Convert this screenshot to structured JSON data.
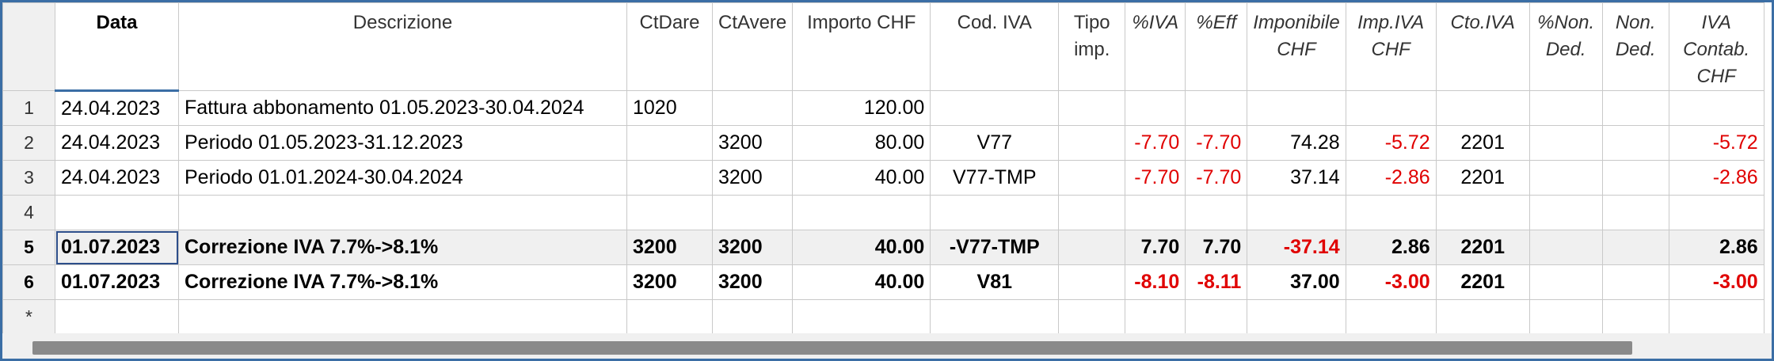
{
  "columns": [
    {
      "key": "rownum",
      "label": "",
      "italic": false
    },
    {
      "key": "data",
      "label": "Data",
      "italic": false
    },
    {
      "key": "descrizione",
      "label": "Descrizione",
      "italic": false
    },
    {
      "key": "ctdare",
      "label": "CtDare",
      "italic": false
    },
    {
      "key": "ctavere",
      "label": "CtAvere",
      "italic": false
    },
    {
      "key": "importo",
      "label": "Importo CHF",
      "italic": false
    },
    {
      "key": "codiva",
      "label": "Cod. IVA",
      "italic": false
    },
    {
      "key": "tipoimp",
      "label": "Tipo imp.",
      "italic": false
    },
    {
      "key": "piva",
      "label": "%IVA",
      "italic": true
    },
    {
      "key": "peff",
      "label": "%Eff",
      "italic": true
    },
    {
      "key": "imponibile",
      "label": "Imponibile CHF",
      "italic": true
    },
    {
      "key": "impiva",
      "label": "Imp.IVA CHF",
      "italic": true
    },
    {
      "key": "ctoiva",
      "label": "Cto.IVA",
      "italic": true
    },
    {
      "key": "pnonded",
      "label": "%Non. Ded.",
      "italic": true
    },
    {
      "key": "nonded",
      "label": "Non. Ded.",
      "italic": true
    },
    {
      "key": "ivacontab",
      "label": "IVA Contab. CHF",
      "italic": true
    }
  ],
  "rows": [
    {
      "num": "1",
      "data": "24.04.2023",
      "descrizione": "Fattura abbonamento 01.05.2023-30.04.2024",
      "ctdare": "1020",
      "ctavere": "",
      "importo": "120.00",
      "codiva": "",
      "tipoimp": "",
      "piva": "",
      "peff": "",
      "imponibile": "",
      "impiva": "",
      "ctoiva": "",
      "pnonded": "",
      "nonded": "",
      "ivacontab": ""
    },
    {
      "num": "2",
      "data": "24.04.2023",
      "descrizione": "Periodo 01.05.2023-31.12.2023",
      "ctdare": "",
      "ctavere": "3200",
      "importo": "80.00",
      "codiva": "V77",
      "tipoimp": "",
      "piva": "-7.70",
      "peff": "-7.70",
      "imponibile": "74.28",
      "impiva": "-5.72",
      "ctoiva": "2201",
      "pnonded": "",
      "nonded": "",
      "ivacontab": "-5.72"
    },
    {
      "num": "3",
      "data": "24.04.2023",
      "descrizione": "Periodo 01.01.2024-30.04.2024",
      "ctdare": "",
      "ctavere": "3200",
      "importo": "40.00",
      "codiva": "V77-TMP",
      "tipoimp": "",
      "piva": "-7.70",
      "peff": "-7.70",
      "imponibile": "37.14",
      "impiva": "-2.86",
      "ctoiva": "2201",
      "pnonded": "",
      "nonded": "",
      "ivacontab": "-2.86"
    },
    {
      "num": "4",
      "data": "",
      "descrizione": "",
      "ctdare": "",
      "ctavere": "",
      "importo": "",
      "codiva": "",
      "tipoimp": "",
      "piva": "",
      "peff": "",
      "imponibile": "",
      "impiva": "",
      "ctoiva": "",
      "pnonded": "",
      "nonded": "",
      "ivacontab": ""
    },
    {
      "num": "5",
      "data": "01.07.2023",
      "descrizione": "Correzione IVA 7.7%->8.1%",
      "ctdare": "3200",
      "ctavere": "3200",
      "importo": "40.00",
      "codiva": "-V77-TMP",
      "tipoimp": "",
      "piva": "7.70",
      "peff": "7.70",
      "imponibile": "-37.14",
      "impiva": "2.86",
      "ctoiva": "2201",
      "pnonded": "",
      "nonded": "",
      "ivacontab": "2.86"
    },
    {
      "num": "6",
      "data": "01.07.2023",
      "descrizione": "Correzione IVA 7.7%->8.1%",
      "ctdare": "3200",
      "ctavere": "3200",
      "importo": "40.00",
      "codiva": "V81",
      "tipoimp": "",
      "piva": "-8.10",
      "peff": "-8.11",
      "imponibile": "37.00",
      "impiva": "-3.00",
      "ctoiva": "2201",
      "pnonded": "",
      "nonded": "",
      "ivacontab": "-3.00"
    },
    {
      "num": "*",
      "data": "",
      "descrizione": "",
      "ctdare": "",
      "ctavere": "",
      "importo": "",
      "codiva": "",
      "tipoimp": "",
      "piva": "",
      "peff": "",
      "imponibile": "",
      "impiva": "",
      "ctoiva": "",
      "pnonded": "",
      "nonded": "",
      "ivacontab": ""
    }
  ],
  "bold_rows": [
    "5",
    "6"
  ],
  "highlight_row": "5",
  "current_cell": {
    "row": "5",
    "col": "data"
  },
  "selected_column": "data",
  "colors": {
    "negative": "#e00000",
    "selection": "#2d4e8a",
    "header_bg": "#f0f0f0",
    "frame": "#3b6ea5"
  }
}
